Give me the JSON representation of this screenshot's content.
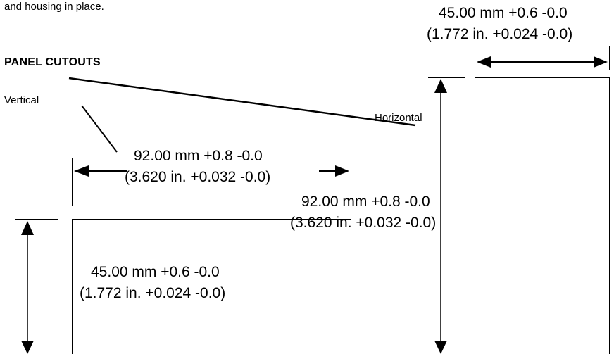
{
  "intro_text": "and housing in place.",
  "heading": "PANEL CUTOUTS",
  "labels": {
    "vertical": "Vertical",
    "horizontal": "Horizontal"
  },
  "dimensions": {
    "horizontal_cutout_width": {
      "metric": "45.00 mm +0.6 -0.0",
      "imperial": "(1.772 in. +0.024 -0.0)"
    },
    "horizontal_cutout_height": {
      "metric": "92.00 mm +0.8 -0.0",
      "imperial": "(3.620 in. +0.032 -0.0)"
    },
    "vertical_cutout_width": {
      "metric": "92.00 mm +0.8 -0.0",
      "imperial": "(3.620 in. +0.032 -0.0)"
    },
    "vertical_cutout_height": {
      "metric": "45.00 mm +0.6 -0.0",
      "imperial": "(1.772 in. +0.024 -0.0)"
    }
  }
}
